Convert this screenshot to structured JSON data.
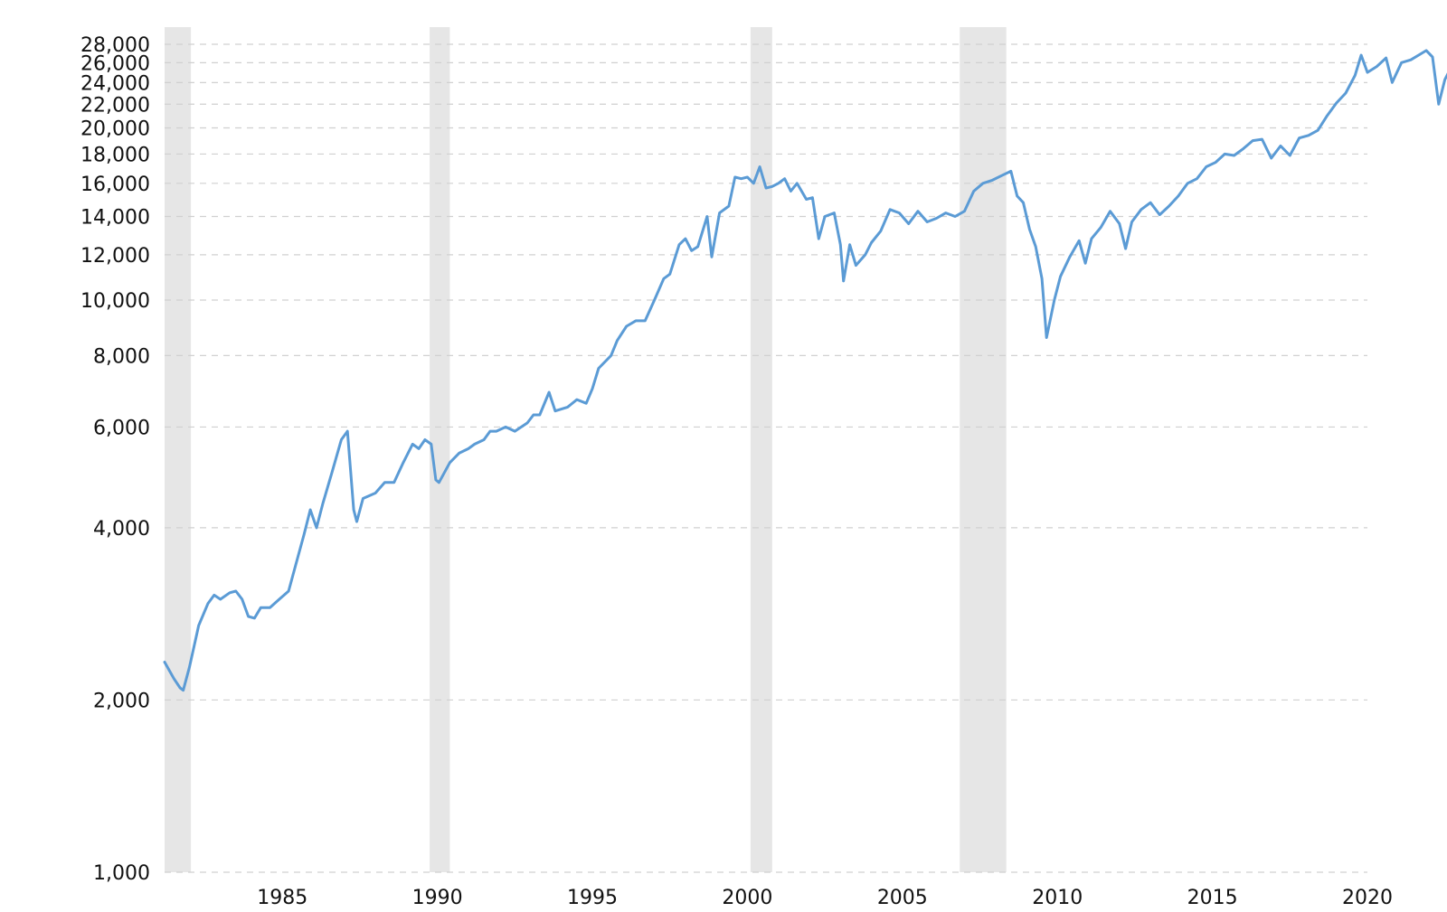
{
  "chart_data": {
    "type": "line",
    "title": "",
    "xlabel": "",
    "ylabel": "",
    "y_scale": "log",
    "ylim": [
      1000,
      30000
    ],
    "xlim": [
      1981.2,
      2020.0
    ],
    "grid": true,
    "legend": "none",
    "line_color": "#5b9bd5",
    "band_color": "#e6e6e6",
    "y_ticks": [
      {
        "value": 1000,
        "label": "1,000"
      },
      {
        "value": 2000,
        "label": "2,000"
      },
      {
        "value": 4000,
        "label": "4,000"
      },
      {
        "value": 6000,
        "label": "6,000"
      },
      {
        "value": 8000,
        "label": "8,000"
      },
      {
        "value": 10000,
        "label": "10,000"
      },
      {
        "value": 12000,
        "label": "12,000"
      },
      {
        "value": 14000,
        "label": "14,000"
      },
      {
        "value": 16000,
        "label": "16,000"
      },
      {
        "value": 18000,
        "label": "18,000"
      },
      {
        "value": 20000,
        "label": "20,000"
      },
      {
        "value": 22000,
        "label": "22,000"
      },
      {
        "value": 24000,
        "label": "24,000"
      },
      {
        "value": 26000,
        "label": "26,000"
      },
      {
        "value": 28000,
        "label": "28,000"
      }
    ],
    "x_ticks": [
      {
        "value": 1985,
        "label": "1985"
      },
      {
        "value": 1990,
        "label": "1990"
      },
      {
        "value": 1995,
        "label": "1995"
      },
      {
        "value": 2000,
        "label": "2000"
      },
      {
        "value": 2005,
        "label": "2005"
      },
      {
        "value": 2010,
        "label": "2010"
      },
      {
        "value": 2015,
        "label": "2015"
      },
      {
        "value": 2020,
        "label": "2020"
      }
    ],
    "recession_bands": [
      {
        "start": 1981.2,
        "end": 1982.05
      },
      {
        "start": 1989.75,
        "end": 1990.4
      },
      {
        "start": 2000.1,
        "end": 2000.8
      },
      {
        "start": 2006.85,
        "end": 2008.35
      }
    ],
    "series": [
      {
        "points": [
          [
            1981.2,
            2330
          ],
          [
            1981.5,
            2180
          ],
          [
            1981.7,
            2100
          ],
          [
            1981.8,
            2080
          ],
          [
            1982.0,
            2280
          ],
          [
            1982.3,
            2700
          ],
          [
            1982.6,
            2950
          ],
          [
            1982.8,
            3050
          ],
          [
            1983.0,
            3000
          ],
          [
            1983.3,
            3080
          ],
          [
            1983.5,
            3100
          ],
          [
            1983.7,
            3000
          ],
          [
            1983.9,
            2800
          ],
          [
            1984.1,
            2780
          ],
          [
            1984.3,
            2900
          ],
          [
            1984.6,
            2900
          ],
          [
            1984.9,
            3000
          ],
          [
            1985.2,
            3100
          ],
          [
            1985.4,
            3400
          ],
          [
            1985.7,
            3900
          ],
          [
            1985.9,
            4300
          ],
          [
            1986.1,
            4000
          ],
          [
            1986.3,
            4400
          ],
          [
            1986.6,
            5000
          ],
          [
            1986.9,
            5700
          ],
          [
            1987.1,
            5900
          ],
          [
            1987.3,
            4300
          ],
          [
            1987.4,
            4100
          ],
          [
            1987.6,
            4500
          ],
          [
            1988.0,
            4600
          ],
          [
            1988.3,
            4800
          ],
          [
            1988.6,
            4800
          ],
          [
            1988.9,
            5200
          ],
          [
            1989.2,
            5600
          ],
          [
            1989.4,
            5500
          ],
          [
            1989.6,
            5700
          ],
          [
            1989.8,
            5600
          ],
          [
            1989.95,
            4850
          ],
          [
            1990.05,
            4800
          ],
          [
            1990.4,
            5200
          ],
          [
            1990.7,
            5400
          ],
          [
            1991.0,
            5500
          ],
          [
            1991.2,
            5600
          ],
          [
            1991.5,
            5700
          ],
          [
            1991.7,
            5900
          ],
          [
            1991.9,
            5900
          ],
          [
            1992.2,
            6000
          ],
          [
            1992.5,
            5900
          ],
          [
            1992.9,
            6100
          ],
          [
            1993.1,
            6300
          ],
          [
            1993.3,
            6300
          ],
          [
            1993.6,
            6900
          ],
          [
            1993.8,
            6400
          ],
          [
            1994.2,
            6500
          ],
          [
            1994.5,
            6700
          ],
          [
            1994.8,
            6600
          ],
          [
            1995.0,
            7000
          ],
          [
            1995.2,
            7600
          ],
          [
            1995.6,
            8000
          ],
          [
            1995.8,
            8500
          ],
          [
            1996.1,
            9000
          ],
          [
            1996.4,
            9200
          ],
          [
            1996.7,
            9200
          ],
          [
            1997.0,
            10000
          ],
          [
            1997.3,
            10900
          ],
          [
            1997.5,
            11100
          ],
          [
            1997.8,
            12500
          ],
          [
            1998.0,
            12800
          ],
          [
            1998.2,
            12200
          ],
          [
            1998.4,
            12400
          ],
          [
            1998.7,
            14000
          ],
          [
            1998.85,
            11900
          ],
          [
            1999.1,
            14200
          ],
          [
            1999.4,
            14600
          ],
          [
            1999.6,
            16400
          ],
          [
            1999.8,
            16300
          ],
          [
            2000.0,
            16400
          ],
          [
            2000.2,
            16000
          ],
          [
            2000.4,
            17100
          ],
          [
            2000.6,
            15700
          ],
          [
            2000.8,
            15800
          ],
          [
            2001.0,
            16000
          ],
          [
            2001.2,
            16300
          ],
          [
            2001.4,
            15500
          ],
          [
            2001.6,
            16000
          ],
          [
            2001.9,
            15000
          ],
          [
            2002.1,
            15100
          ],
          [
            2002.3,
            12800
          ],
          [
            2002.5,
            14000
          ],
          [
            2002.8,
            14200
          ],
          [
            2003.0,
            12500
          ],
          [
            2003.1,
            10800
          ],
          [
            2003.3,
            12500
          ],
          [
            2003.5,
            11500
          ],
          [
            2003.8,
            12000
          ],
          [
            2004.0,
            12600
          ],
          [
            2004.3,
            13200
          ],
          [
            2004.6,
            14400
          ],
          [
            2004.9,
            14200
          ],
          [
            2005.2,
            13600
          ],
          [
            2005.5,
            14300
          ],
          [
            2005.8,
            13700
          ],
          [
            2006.1,
            13900
          ],
          [
            2006.4,
            14200
          ],
          [
            2006.7,
            14000
          ],
          [
            2007.0,
            14300
          ],
          [
            2007.3,
            15500
          ],
          [
            2007.6,
            16000
          ],
          [
            2007.9,
            16200
          ],
          [
            2008.2,
            16500
          ],
          [
            2008.5,
            16800
          ],
          [
            2008.7,
            15200
          ],
          [
            2008.9,
            14800
          ],
          [
            2009.1,
            13300
          ],
          [
            2009.3,
            12400
          ],
          [
            2009.5,
            10900
          ],
          [
            2009.65,
            8600
          ],
          [
            2009.9,
            10000
          ],
          [
            2010.1,
            11000
          ],
          [
            2010.4,
            11900
          ],
          [
            2010.7,
            12700
          ],
          [
            2010.9,
            11600
          ],
          [
            2011.1,
            12800
          ],
          [
            2011.4,
            13400
          ],
          [
            2011.7,
            14300
          ],
          [
            2012.0,
            13600
          ],
          [
            2012.2,
            12300
          ],
          [
            2012.4,
            13700
          ],
          [
            2012.7,
            14400
          ],
          [
            2013.0,
            14800
          ],
          [
            2013.3,
            14100
          ],
          [
            2013.6,
            14600
          ],
          [
            2013.9,
            15200
          ],
          [
            2014.2,
            16000
          ],
          [
            2014.5,
            16300
          ],
          [
            2014.8,
            17100
          ],
          [
            2015.1,
            17400
          ],
          [
            2015.4,
            18000
          ],
          [
            2015.7,
            17900
          ],
          [
            2016.0,
            18400
          ],
          [
            2016.3,
            19000
          ],
          [
            2016.6,
            19100
          ],
          [
            2016.9,
            17700
          ],
          [
            2017.2,
            18600
          ],
          [
            2017.5,
            17900
          ],
          [
            2017.8,
            19200
          ],
          [
            2018.1,
            19400
          ],
          [
            2018.4,
            19800
          ],
          [
            2018.7,
            21000
          ],
          [
            2019.0,
            22100
          ],
          [
            2019.3,
            23000
          ],
          [
            2019.6,
            24700
          ],
          [
            2019.8,
            26800
          ],
          [
            2020.0,
            25000
          ],
          [
            2020.3,
            25600
          ],
          [
            2020.6,
            26500
          ],
          [
            2020.8,
            24000
          ],
          [
            2021.1,
            26000
          ],
          [
            2021.4,
            26300
          ],
          [
            2021.7,
            26900
          ],
          [
            2021.9,
            27300
          ],
          [
            2022.1,
            26600
          ],
          [
            2022.3,
            22000
          ],
          [
            2022.5,
            24300
          ],
          [
            2022.7,
            25500
          ]
        ]
      }
    ]
  }
}
